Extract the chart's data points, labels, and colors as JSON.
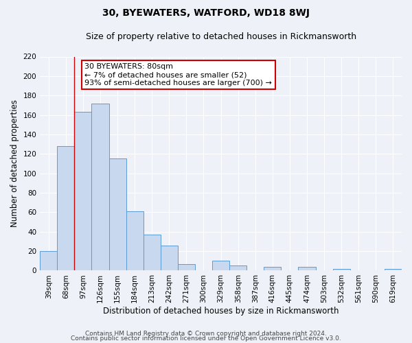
{
  "title": "30, BYEWATERS, WATFORD, WD18 8WJ",
  "subtitle": "Size of property relative to detached houses in Rickmansworth",
  "xlabel": "Distribution of detached houses by size in Rickmansworth",
  "ylabel": "Number of detached properties",
  "categories": [
    "39sqm",
    "68sqm",
    "97sqm",
    "126sqm",
    "155sqm",
    "184sqm",
    "213sqm",
    "242sqm",
    "271sqm",
    "300sqm",
    "329sqm",
    "358sqm",
    "387sqm",
    "416sqm",
    "445sqm",
    "474sqm",
    "503sqm",
    "532sqm",
    "561sqm",
    "590sqm",
    "619sqm"
  ],
  "values": [
    20,
    128,
    163,
    172,
    115,
    61,
    37,
    26,
    7,
    0,
    10,
    5,
    0,
    4,
    0,
    4,
    0,
    2,
    0,
    0,
    2
  ],
  "bar_color": "#c8d9ef",
  "bar_edge_color": "#5b9bd5",
  "ylim": [
    0,
    220
  ],
  "yticks": [
    0,
    20,
    40,
    60,
    80,
    100,
    120,
    140,
    160,
    180,
    200,
    220
  ],
  "red_line_x": 1.5,
  "annotation_line1": "30 BYEWATERS: 80sqm",
  "annotation_line2": "← 7% of detached houses are smaller (52)",
  "annotation_line3": "93% of semi-detached houses are larger (700) →",
  "annotation_box_color": "#ffffff",
  "annotation_box_edge": "#cc0000",
  "footer1": "Contains HM Land Registry data © Crown copyright and database right 2024.",
  "footer2": "Contains public sector information licensed under the Open Government Licence v3.0.",
  "background_color": "#eef2f8",
  "plot_bg_color": "#eef2f8",
  "grid_color": "#ffffff",
  "title_fontsize": 10,
  "subtitle_fontsize": 9,
  "axis_label_fontsize": 8.5,
  "tick_fontsize": 7.5,
  "footer_fontsize": 6.5,
  "annotation_fontsize": 8
}
